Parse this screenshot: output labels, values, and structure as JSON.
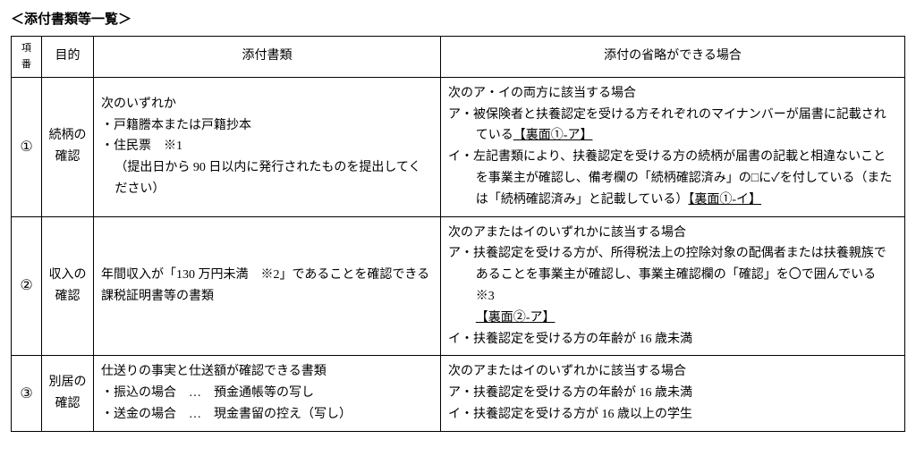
{
  "title": "＜添付書類等一覧＞",
  "headers": {
    "num": "項番",
    "purpose": "目的",
    "docs": "添付書類",
    "omit": "添付の省略ができる場合"
  },
  "rows": {
    "r1": {
      "num": "①",
      "purpose": "続柄の確認",
      "docs_l1": "次のいずれか",
      "docs_l2": "・戸籍謄本または戸籍抄本",
      "docs_l3": "・住民票　※1",
      "docs_l4": "（提出日から 90 日以内に発行されたものを提出してください）",
      "omit_l1": "次のア・イの両方に該当する場合",
      "omit_l2a": "ア・被保険者と扶養認定を受ける方それぞれのマイナンバーが届書に記載されている",
      "omit_l2ref": "【裏面①-ア】",
      "omit_l3a": "イ・左記書類により、扶養認定を受ける方の続柄が届書の記載と相違ないことを事業主が確認し、備考欄の「続柄確認済み」の□に✓を付している（または「続柄確認済み」と記載している）",
      "omit_l3ref": "【裏面①-イ】"
    },
    "r2": {
      "num": "②",
      "purpose": "収入の確認",
      "docs": "年間収入が「130 万円未満　※2」であることを確認できる課税証明書等の書類",
      "omit_l1": "次のアまたはイのいずれかに該当する場合",
      "omit_l2a": "ア・扶養認定を受ける方が、所得税法上の控除対象の配偶者または扶養親族であることを事業主が確認し、事業主確認欄の「確認」を〇で囲んでいる　※3",
      "omit_l2ref": "【裏面②-ア】",
      "omit_l3": "イ・扶養認定を受ける方の年齢が 16 歳未満"
    },
    "r3": {
      "num": "③",
      "purpose": "別居の確認",
      "docs_l1": "仕送りの事実と仕送額が確認できる書類",
      "docs_l2": "・振込の場合　…　預金通帳等の写し",
      "docs_l3": "・送金の場合　…　現金書留の控え（写し）",
      "omit_l1": "次のアまたはイのいずれかに該当する場合",
      "omit_l2": "ア・扶養認定を受ける方の年齢が 16 歳未満",
      "omit_l3": "イ・扶養認定を受ける方が 16 歳以上の学生"
    }
  }
}
